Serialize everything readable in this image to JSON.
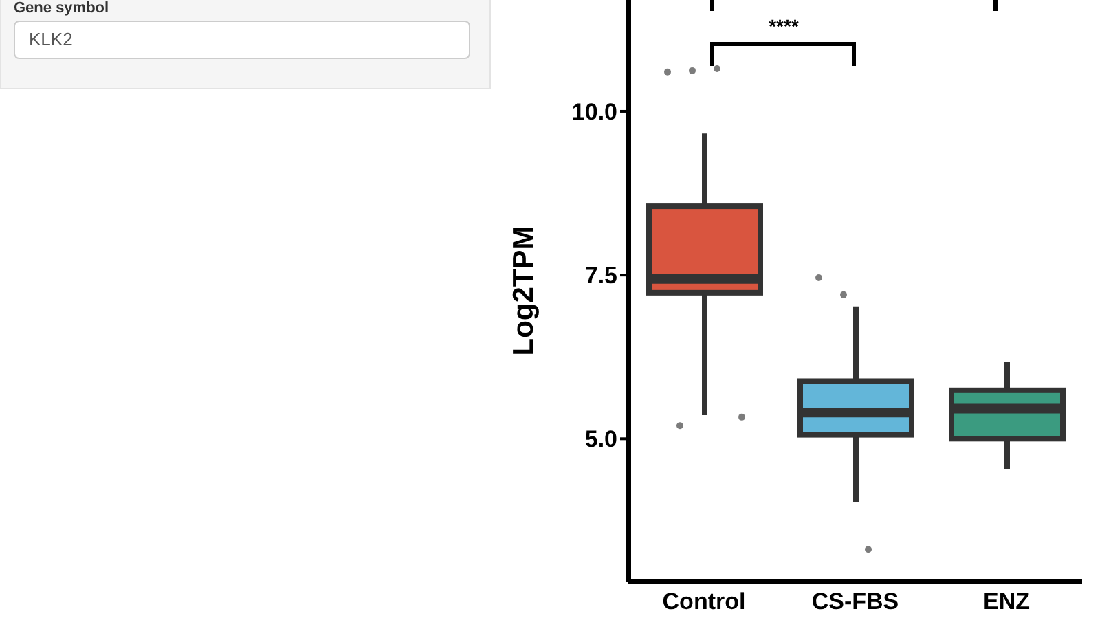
{
  "chart_data": {
    "type": "box",
    "ylabel": "Log2TPM",
    "categories": [
      "Control",
      "CS-FBS",
      "ENZ"
    ],
    "colors": [
      "#d9553f",
      "#63b6d9",
      "#3b9b80"
    ],
    "boxes": [
      {
        "low": 5.36,
        "q1": 7.23,
        "median": 7.44,
        "q3": 8.55,
        "high": 9.66,
        "outliers": [
          10.6,
          10.62,
          10.65,
          5.33,
          5.2
        ]
      },
      {
        "low": 4.03,
        "q1": 5.06,
        "median": 5.4,
        "q3": 5.88,
        "high": 7.02,
        "outliers": [
          7.46,
          7.2,
          3.31
        ]
      },
      {
        "low": 4.54,
        "q1": 5.0,
        "median": 5.46,
        "q3": 5.74,
        "high": 6.18
      }
    ],
    "ylim": [
      2.82,
      11.7
    ],
    "yticks": [
      {
        "value": 5,
        "label": "5.0"
      },
      {
        "value": 7.5,
        "label": "7.5"
      },
      {
        "value": 10,
        "label": "10.0"
      }
    ],
    "grid": false,
    "annotations": [
      "****",
      "Gene symbol",
      "KLK2"
    ]
  }
}
